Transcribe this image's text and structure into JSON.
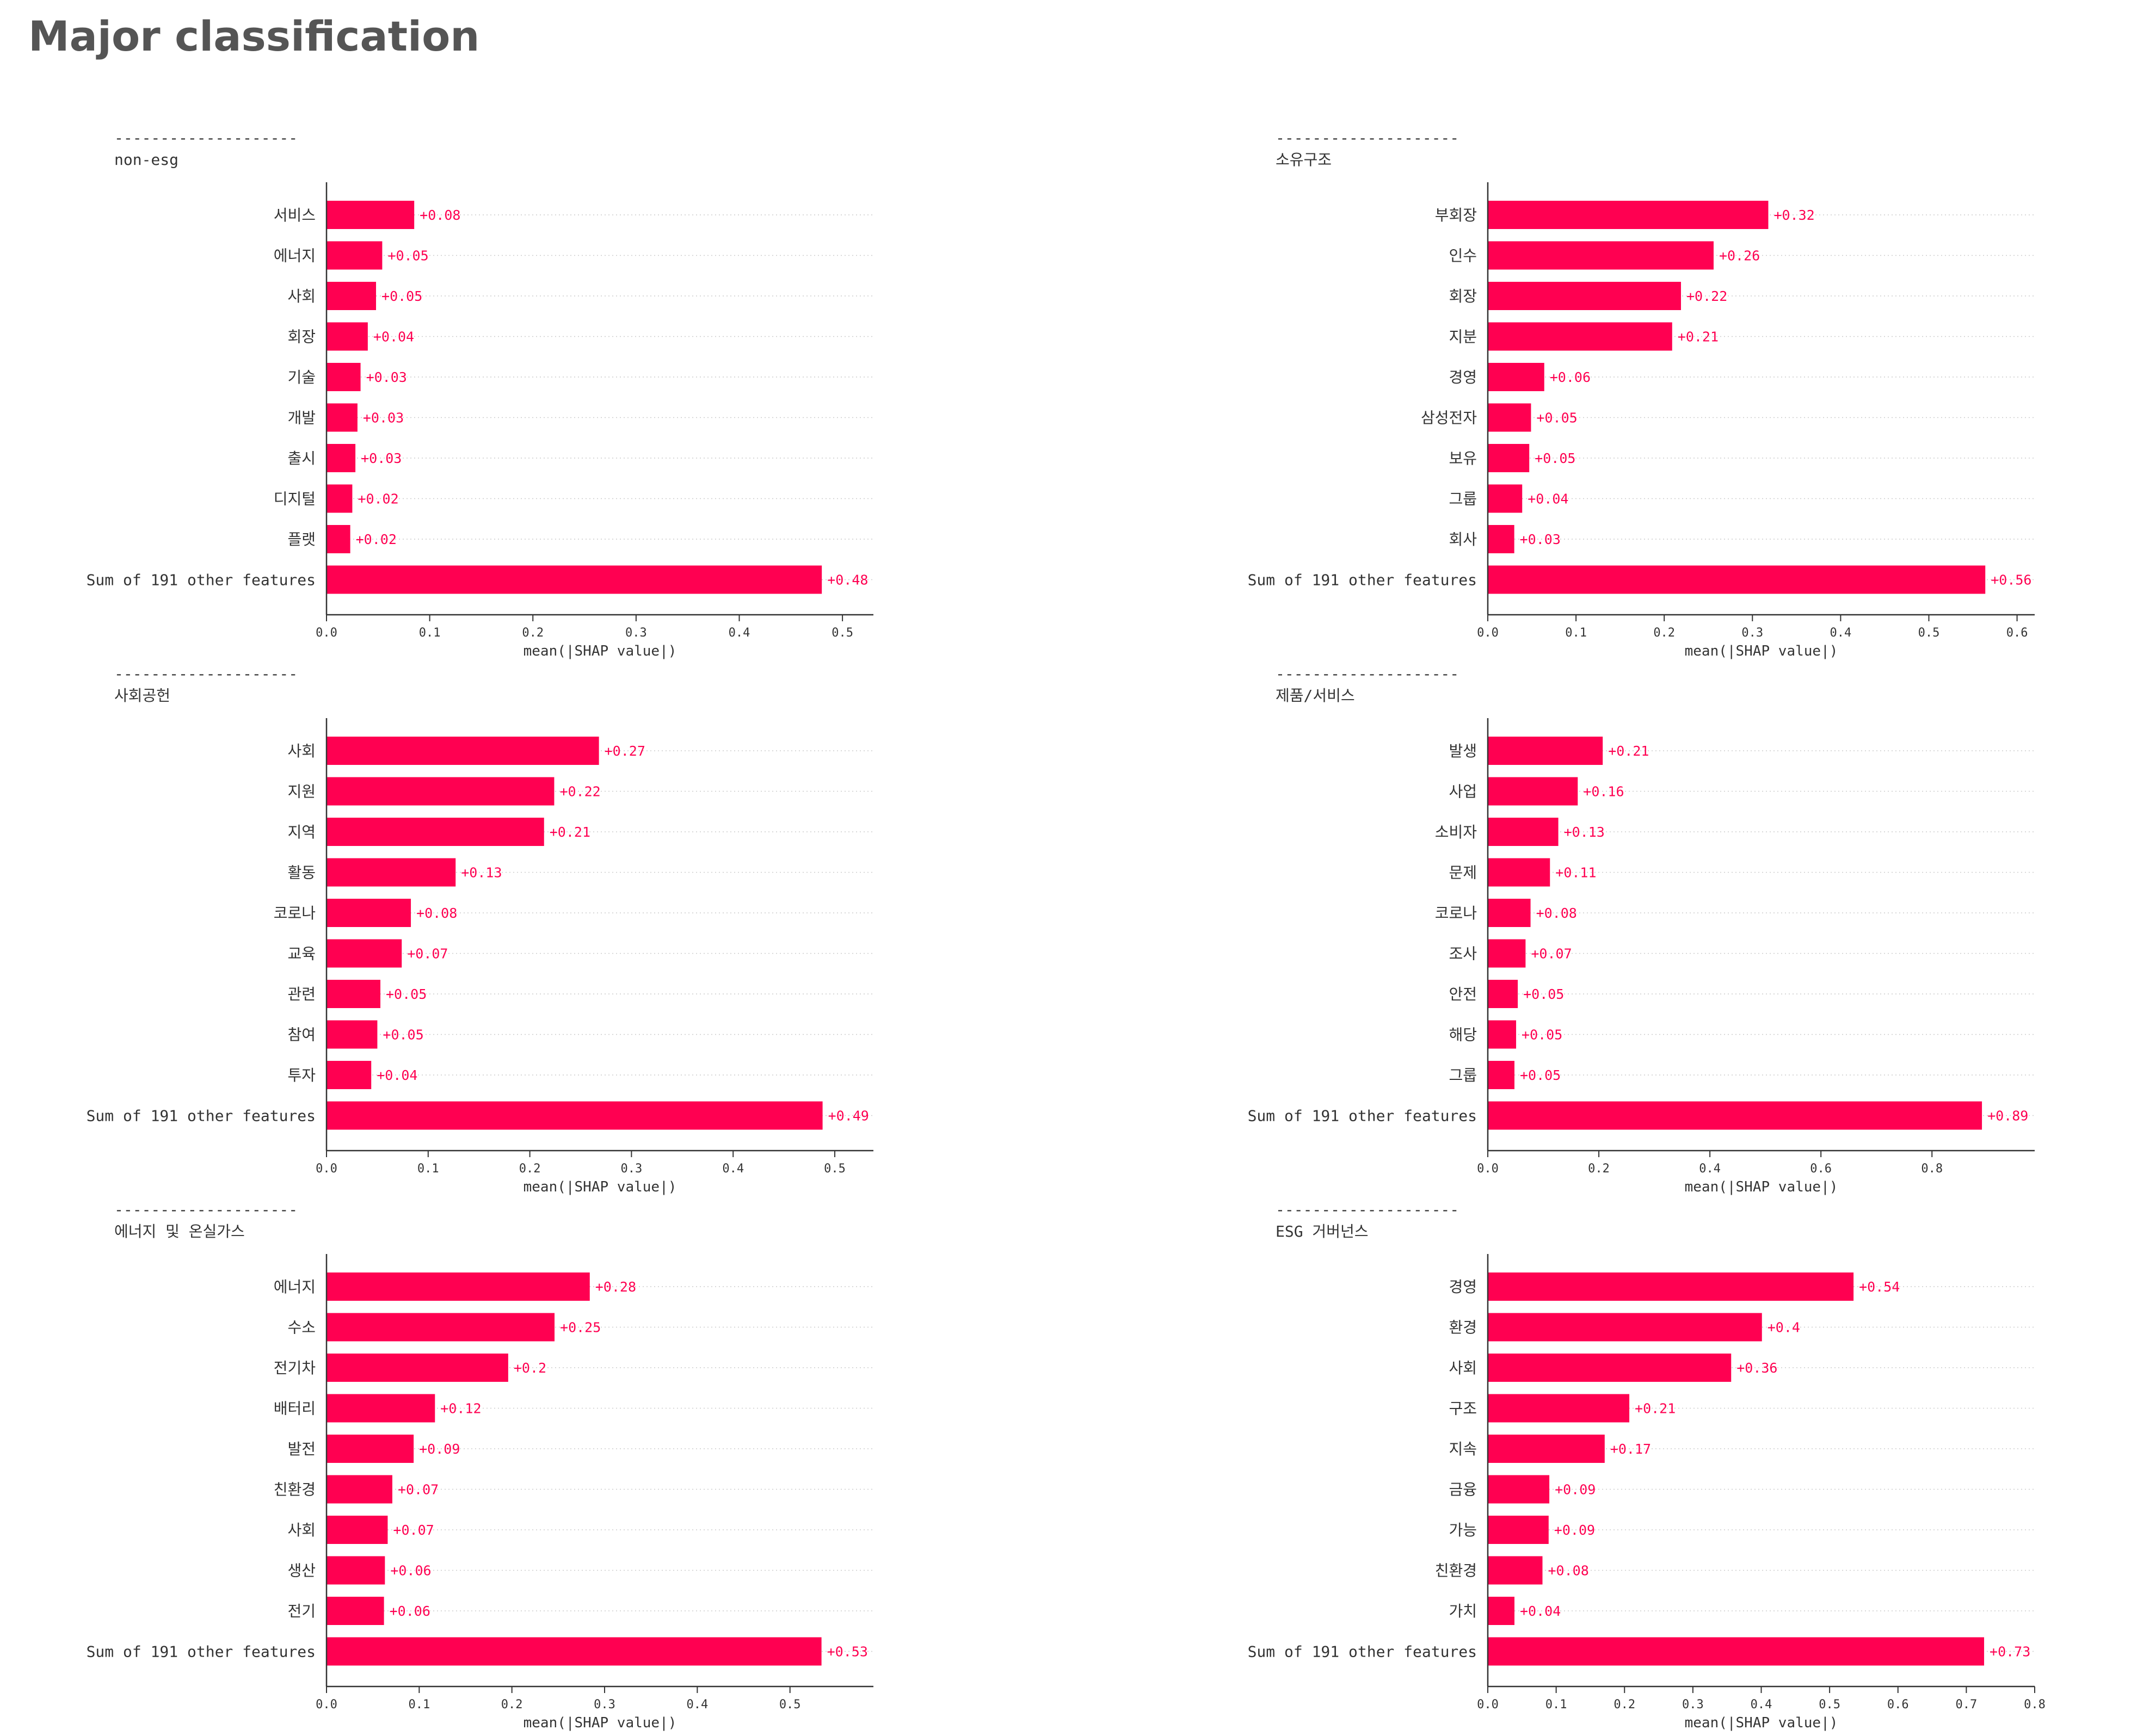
{
  "page": {
    "title": "Major classification"
  },
  "chart_data": [
    {
      "type": "bar",
      "orientation": "horizontal",
      "title": "non-esg",
      "title_rule": "--------------------",
      "xlabel": "mean(|SHAP value|)",
      "xlim": [
        0,
        0.53
      ],
      "xticks": [
        0.0,
        0.1,
        0.2,
        0.3,
        0.4,
        0.5
      ],
      "xtick_labels": [
        "0.0",
        "0.1",
        "0.2",
        "0.3",
        "0.4",
        "0.5"
      ],
      "grid": "horizontal dotted",
      "categories": [
        "서비스",
        "에너지",
        "사회",
        "회장",
        "기술",
        "개발",
        "출시",
        "디지털",
        "플랫",
        "Sum of 191 other features"
      ],
      "values": [
        0.085,
        0.054,
        0.048,
        0.04,
        0.033,
        0.03,
        0.028,
        0.025,
        0.023,
        0.48
      ],
      "value_labels": [
        "+0.08",
        "+0.05",
        "+0.05",
        "+0.04",
        "+0.03",
        "+0.03",
        "+0.03",
        "+0.02",
        "+0.02",
        "+0.48"
      ]
    },
    {
      "type": "bar",
      "orientation": "horizontal",
      "title": "소유구조",
      "title_rule": "--------------------",
      "xlabel": "mean(|SHAP value|)",
      "xlim": [
        0,
        0.62
      ],
      "xticks": [
        0.0,
        0.1,
        0.2,
        0.3,
        0.4,
        0.5,
        0.6
      ],
      "xtick_labels": [
        "0.0",
        "0.1",
        "0.2",
        "0.3",
        "0.4",
        "0.5",
        "0.6"
      ],
      "grid": "horizontal dotted",
      "categories": [
        "부회장",
        "인수",
        "회장",
        "지분",
        "경영",
        "삼성전자",
        "보유",
        "그룹",
        "회사",
        "Sum of 191 other features"
      ],
      "values": [
        0.318,
        0.256,
        0.219,
        0.209,
        0.064,
        0.049,
        0.047,
        0.039,
        0.03,
        0.564
      ],
      "value_labels": [
        "+0.32",
        "+0.26",
        "+0.22",
        "+0.21",
        "+0.06",
        "+0.05",
        "+0.05",
        "+0.04",
        "+0.03",
        "+0.56"
      ]
    },
    {
      "type": "bar",
      "orientation": "horizontal",
      "title": "사회공헌",
      "title_rule": "--------------------",
      "xlabel": "mean(|SHAP value|)",
      "xlim": [
        0,
        0.538
      ],
      "xticks": [
        0.0,
        0.1,
        0.2,
        0.3,
        0.4,
        0.5
      ],
      "xtick_labels": [
        "0.0",
        "0.1",
        "0.2",
        "0.3",
        "0.4",
        "0.5"
      ],
      "grid": "horizontal dotted",
      "categories": [
        "사회",
        "지원",
        "지역",
        "활동",
        "코로나",
        "교육",
        "관련",
        "참여",
        "투자",
        "Sum of 191 other features"
      ],
      "values": [
        0.268,
        0.224,
        0.214,
        0.127,
        0.083,
        0.074,
        0.053,
        0.05,
        0.044,
        0.488
      ],
      "value_labels": [
        "+0.27",
        "+0.22",
        "+0.21",
        "+0.13",
        "+0.08",
        "+0.07",
        "+0.05",
        "+0.05",
        "+0.04",
        "+0.49"
      ]
    },
    {
      "type": "bar",
      "orientation": "horizontal",
      "title": "제품/서비스",
      "title_rule": "--------------------",
      "xlabel": "mean(|SHAP value|)",
      "xlim": [
        0,
        0.985
      ],
      "xticks": [
        0.0,
        0.2,
        0.4,
        0.6,
        0.8
      ],
      "xtick_labels": [
        "0.0",
        "0.2",
        "0.4",
        "0.6",
        "0.8"
      ],
      "grid": "horizontal dotted",
      "categories": [
        "발생",
        "사업",
        "소비자",
        "문제",
        "코로나",
        "조사",
        "안전",
        "해당",
        "그룹",
        "Sum of 191 other features"
      ],
      "values": [
        0.207,
        0.162,
        0.127,
        0.112,
        0.077,
        0.068,
        0.054,
        0.051,
        0.048,
        0.89
      ],
      "value_labels": [
        "+0.21",
        "+0.16",
        "+0.13",
        "+0.11",
        "+0.08",
        "+0.07",
        "+0.05",
        "+0.05",
        "+0.05",
        "+0.89"
      ]
    },
    {
      "type": "bar",
      "orientation": "horizontal",
      "title": "에너지 및 온실가스",
      "title_rule": "--------------------",
      "xlabel": "mean(|SHAP value|)",
      "xlim": [
        0,
        0.59
      ],
      "xticks": [
        0.0,
        0.1,
        0.2,
        0.3,
        0.4,
        0.5
      ],
      "xtick_labels": [
        "0.0",
        "0.1",
        "0.2",
        "0.3",
        "0.4",
        "0.5"
      ],
      "grid": "horizontal dotted",
      "categories": [
        "에너지",
        "수소",
        "전기차",
        "배터리",
        "발전",
        "친환경",
        "사회",
        "생산",
        "전기",
        "Sum of 191 other features"
      ],
      "values": [
        0.284,
        0.246,
        0.196,
        0.117,
        0.094,
        0.071,
        0.066,
        0.063,
        0.062,
        0.534
      ],
      "value_labels": [
        "+0.28",
        "+0.25",
        "+0.2",
        "+0.12",
        "+0.09",
        "+0.07",
        "+0.07",
        "+0.06",
        "+0.06",
        "+0.53"
      ]
    },
    {
      "type": "bar",
      "orientation": "horizontal",
      "title": "ESG 거버넌스",
      "title_rule": "--------------------",
      "xlabel": "mean(|SHAP value|)",
      "xlim": [
        0,
        0.8
      ],
      "xticks": [
        0.0,
        0.1,
        0.2,
        0.3,
        0.4,
        0.5,
        0.6,
        0.7,
        0.8
      ],
      "xtick_labels": [
        "0.0",
        "0.1",
        "0.2",
        "0.3",
        "0.4",
        "0.5",
        "0.6",
        "0.7",
        "0.8"
      ],
      "grid": "horizontal dotted",
      "categories": [
        "경영",
        "환경",
        "사회",
        "구조",
        "지속",
        "금융",
        "가능",
        "친환경",
        "가치",
        "Sum of 191 other features"
      ],
      "values": [
        0.535,
        0.401,
        0.356,
        0.207,
        0.171,
        0.09,
        0.089,
        0.08,
        0.039,
        0.726
      ],
      "value_labels": [
        "+0.54",
        "+0.4",
        "+0.36",
        "+0.21",
        "+0.17",
        "+0.09",
        "+0.09",
        "+0.08",
        "+0.04",
        "+0.73"
      ]
    }
  ],
  "colors": {
    "bar": "#ff0051",
    "value_label": "#ff0051",
    "axis": "#333333",
    "text": "#333333",
    "grid": "#cccccc",
    "title": "#555555"
  }
}
